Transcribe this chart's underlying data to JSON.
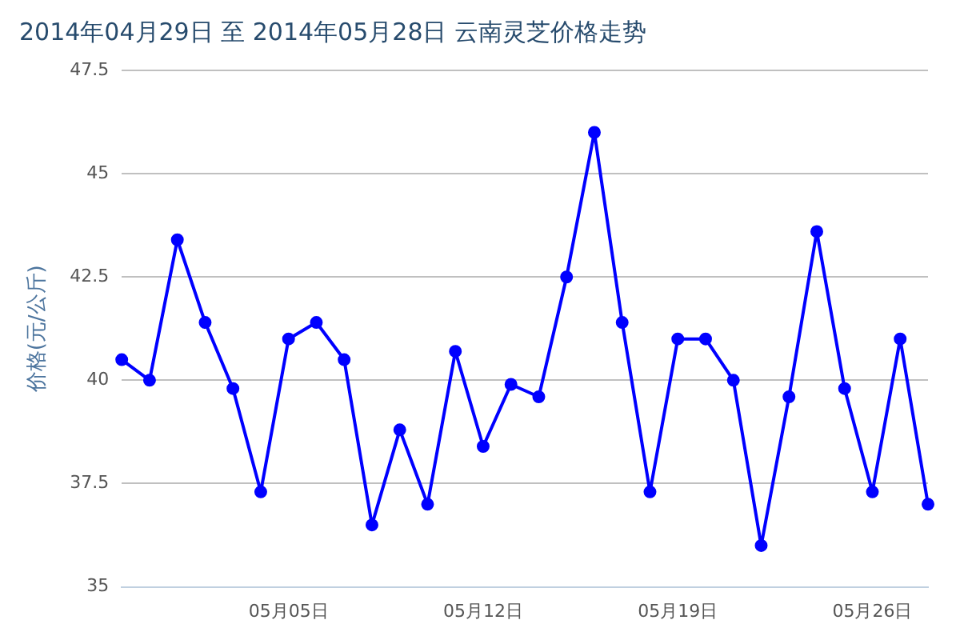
{
  "chart_data": {
    "type": "line",
    "title": "2014年04月29日 至 2014年05月28日 云南灵芝价格走势",
    "ylabel": "价格(元/公斤)",
    "categories": [
      null,
      null,
      null,
      null,
      null,
      null,
      "05月05日",
      null,
      null,
      null,
      null,
      null,
      null,
      "05月12日",
      null,
      null,
      null,
      null,
      null,
      null,
      "05月19日",
      null,
      null,
      null,
      null,
      null,
      null,
      "05月26日",
      null,
      null
    ],
    "series": [
      {
        "color": "#0000ff",
        "values": [
          40.5,
          40.0,
          43.4,
          41.4,
          39.8,
          37.3,
          41.0,
          41.4,
          40.5,
          36.5,
          38.8,
          37.0,
          40.7,
          38.4,
          39.9,
          39.6,
          42.5,
          46.0,
          41.4,
          37.3,
          41.0,
          41.0,
          40.0,
          36.0,
          39.6,
          43.6,
          39.8,
          37.3,
          41.0,
          37.0
        ]
      }
    ],
    "ylim": [
      35,
      47.5
    ],
    "yticks": [
      35,
      37.5,
      40,
      42.5,
      45,
      47.5
    ],
    "grid": "y",
    "legend": false,
    "marker": "circle",
    "line_style": "solid"
  }
}
